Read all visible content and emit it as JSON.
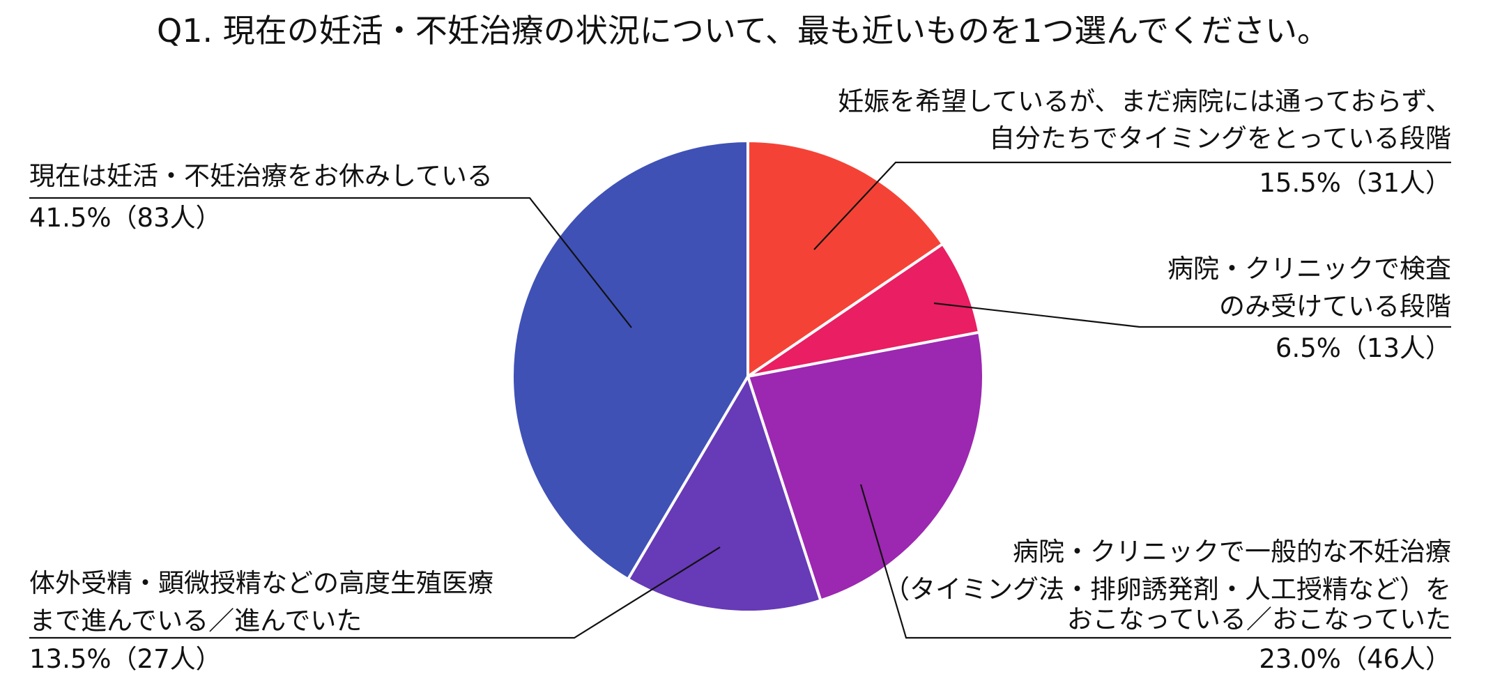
{
  "chart_data": {
    "type": "pie",
    "title": "Q1. 現在の妊活・不妊治療の状況について、最も近いものを1つ選んでください。",
    "slices": [
      {
        "label_lines": [
          "妊娠を希望しているが、まだ病院には通っておらず、",
          "自分たちでタイミングをとっている段階"
        ],
        "value_text": "15.5%（31人）",
        "percent": 15.5,
        "count": 31,
        "color": "#f44336"
      },
      {
        "label_lines": [
          "病院・クリニックで検査",
          "のみ受けている段階"
        ],
        "value_text": "6.5%（13人）",
        "percent": 6.5,
        "count": 13,
        "color": "#e91e63"
      },
      {
        "label_lines": [
          "病院・クリニックで一般的な不妊治療",
          "（タイミング法・排卵誘発剤・人工授精など）を",
          "おこなっている／おこなっていた"
        ],
        "value_text": "23.0%（46人）",
        "percent": 23.0,
        "count": 46,
        "color": "#9c27b0"
      },
      {
        "label_lines": [
          "体外受精・顕微授精などの高度生殖医療",
          "まで進んでいる／進んでいた"
        ],
        "value_text": "13.5%（27人）",
        "percent": 13.5,
        "count": 27,
        "color": "#673ab7"
      },
      {
        "label_lines": [
          "現在は妊活・不妊治療をお休みしている"
        ],
        "value_text": "41.5%（83人）",
        "percent": 41.5,
        "count": 83,
        "color": "#3f51b5"
      }
    ]
  }
}
